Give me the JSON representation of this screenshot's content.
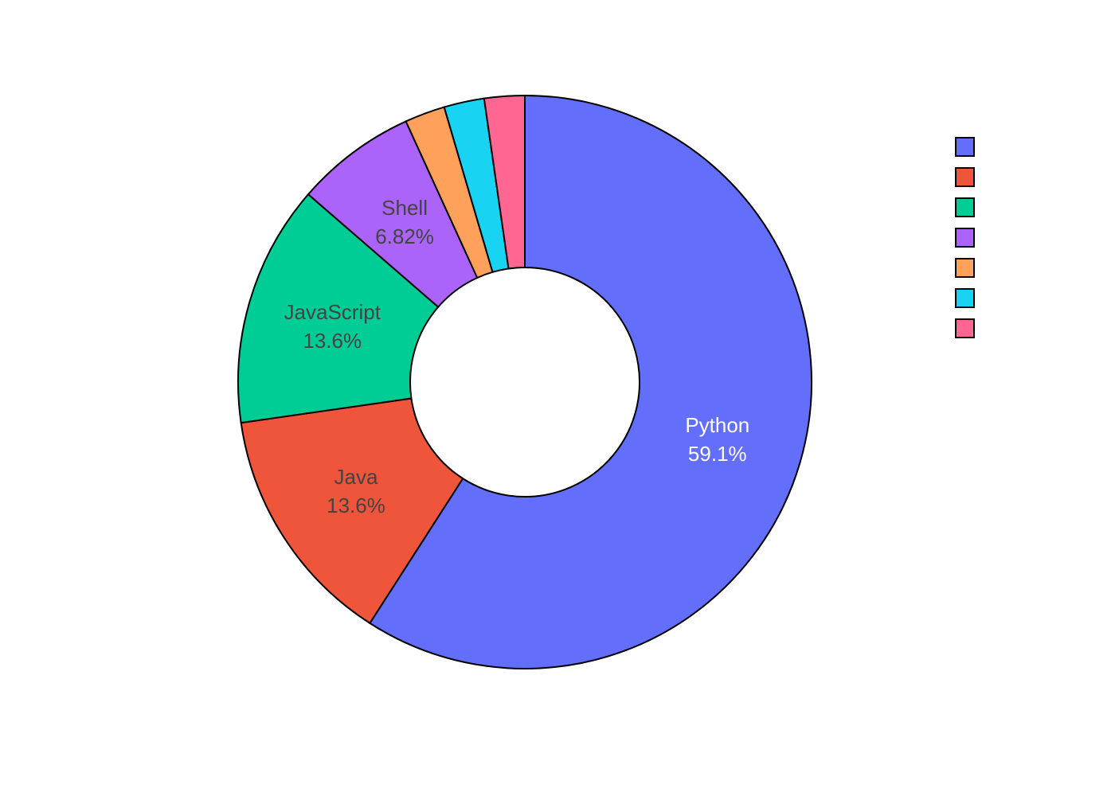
{
  "chart_data": {
    "type": "pie",
    "hole": 0.4,
    "direction": "clockwise",
    "start_angle": "top",
    "categories": [
      "Python",
      "Java",
      "JavaScript",
      "Shell",
      "",
      "",
      ""
    ],
    "values": [
      59.09,
      13.64,
      13.64,
      6.82,
      2.27,
      2.27,
      2.27
    ],
    "value_labels": [
      "59.1%",
      "13.6%",
      "13.6%",
      "6.82%",
      "",
      "",
      ""
    ],
    "colors": [
      "#636efa",
      "#EF553B",
      "#00cc96",
      "#ab63fa",
      "#FFA15A",
      "#19d3f3",
      "#FF6692"
    ],
    "label_colors": [
      "#ffffff",
      "#444444",
      "#444444",
      "#444444",
      "#444444",
      "#444444",
      "#444444"
    ],
    "legend": {
      "placement": "top-right",
      "entries": [
        "",
        "",
        "",
        "",
        "",
        "",
        ""
      ]
    },
    "title": ""
  }
}
